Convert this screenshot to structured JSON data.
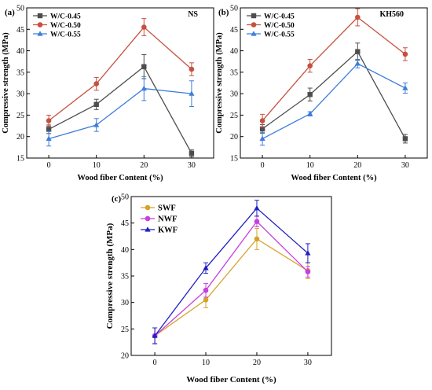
{
  "chart_data": [
    {
      "panel_label": "(a)",
      "tag": "NS",
      "type": "line",
      "categories": [
        "0",
        "10",
        "20",
        "30"
      ],
      "xlabel": "Wood fiber Content (%)",
      "ylabel": "Compressive strength (MPa)",
      "ylim": [
        15,
        50
      ],
      "yticks": [
        "15",
        "20",
        "25",
        "30",
        "35",
        "40",
        "45",
        "50"
      ],
      "legend_position": "top-left",
      "series": [
        {
          "name": "W/C-0.45",
          "color": "#4d4d4d",
          "marker": "square",
          "values": [
            21.7,
            27.5,
            36.3,
            16.1
          ],
          "errors": [
            1.0,
            1.2,
            2.8,
            0.8
          ]
        },
        {
          "name": "W/C-0.50",
          "color": "#c6503f",
          "marker": "circle",
          "values": [
            23.7,
            32.3,
            45.5,
            35.7
          ],
          "errors": [
            1.3,
            1.5,
            2.0,
            1.5
          ]
        },
        {
          "name": "W/C-0.55",
          "color": "#3d7ddb",
          "marker": "triangle",
          "values": [
            19.5,
            22.7,
            31.2,
            30.0
          ],
          "errors": [
            1.7,
            1.5,
            2.8,
            3.0
          ]
        }
      ]
    },
    {
      "panel_label": "(b)",
      "tag": "KH560",
      "type": "line",
      "categories": [
        "0",
        "10",
        "20",
        "30"
      ],
      "xlabel": "Wood fiber Content (%)",
      "ylabel": "Compressive strength (MPa)",
      "ylim": [
        15,
        50
      ],
      "yticks": [
        "15",
        "20",
        "25",
        "30",
        "35",
        "40",
        "45",
        "50"
      ],
      "legend_position": "top-left",
      "series": [
        {
          "name": "W/C-0.45",
          "color": "#4d4d4d",
          "marker": "square",
          "values": [
            21.8,
            29.8,
            39.8,
            19.5
          ],
          "errors": [
            1.0,
            1.5,
            2.0,
            1.0
          ]
        },
        {
          "name": "W/C-0.50",
          "color": "#c6503f",
          "marker": "circle",
          "values": [
            23.7,
            36.5,
            47.8,
            39.2
          ],
          "errors": [
            1.5,
            1.5,
            2.0,
            1.5
          ]
        },
        {
          "name": "W/C-0.55",
          "color": "#3d7ddb",
          "marker": "triangle",
          "values": [
            19.5,
            25.3,
            37.0,
            31.3
          ],
          "errors": [
            1.5,
            0.5,
            1.0,
            1.2
          ]
        }
      ]
    },
    {
      "panel_label": "(c)",
      "tag": "",
      "type": "line",
      "categories": [
        "0",
        "10",
        "20",
        "30"
      ],
      "xlabel": "Wood fiber Content (%)",
      "ylabel": "Compressive strength (MPa)",
      "ylim": [
        20,
        50
      ],
      "yticks": [
        "20",
        "25",
        "30",
        "35",
        "40",
        "45",
        "50"
      ],
      "legend_position": "top-left",
      "series": [
        {
          "name": "SWF",
          "color": "#d6a328",
          "marker": "circle",
          "values": [
            23.7,
            30.5,
            42.0,
            36.0
          ],
          "errors": [
            1.5,
            1.5,
            2.0,
            1.5
          ]
        },
        {
          "name": "NWF",
          "color": "#c73fe0",
          "marker": "circle",
          "values": [
            23.7,
            32.3,
            45.3,
            35.8
          ],
          "errors": [
            1.5,
            1.3,
            1.0,
            1.0
          ]
        },
        {
          "name": "KWF",
          "color": "#1f1fc0",
          "marker": "triangle",
          "values": [
            23.7,
            36.5,
            47.8,
            39.3
          ],
          "errors": [
            1.5,
            1.0,
            1.5,
            1.8
          ]
        }
      ]
    }
  ]
}
